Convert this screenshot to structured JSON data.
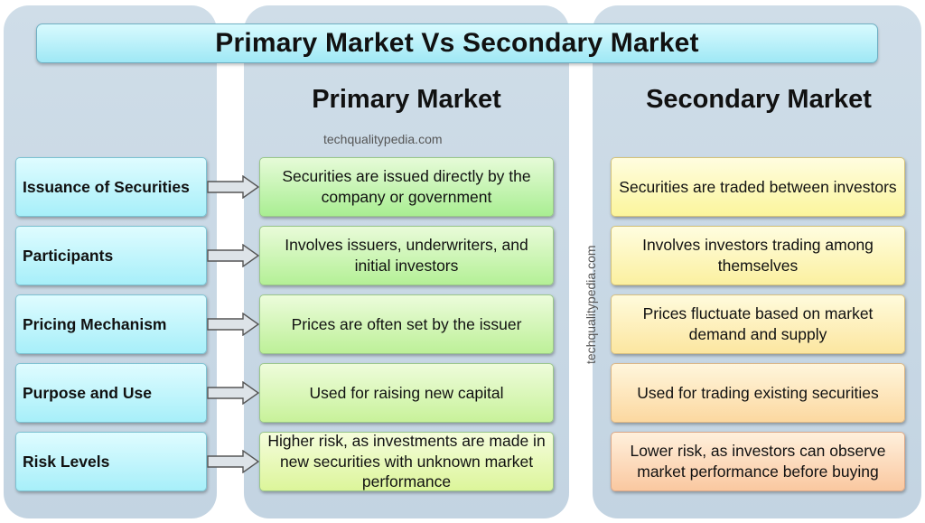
{
  "title": "Primary Market Vs Secondary Market",
  "headings": {
    "primary": "Primary Market",
    "secondary": "Secondary Market"
  },
  "watermark": "techqualitypedia.com",
  "rows": [
    {
      "label": "Issuance of Securities",
      "primary": "Securities are issued directly by the company or government",
      "secondary": "Securities are traded between investors"
    },
    {
      "label": "Participants",
      "primary": "Involves issuers, underwriters, and initial investors",
      "secondary": "Involves investors trading among themselves"
    },
    {
      "label": "Pricing Mechanism",
      "primary": "Prices are often set by the issuer",
      "secondary": "Prices fluctuate based on market demand and supply"
    },
    {
      "label": "Purpose and Use",
      "primary": "Used for raising new capital",
      "secondary": "Used for trading existing securities"
    },
    {
      "label": "Risk Levels",
      "primary": "Higher risk, as investments are made in new securities with unknown market performance",
      "secondary": "Lower risk, as investors can observe market performance before buying"
    }
  ]
}
